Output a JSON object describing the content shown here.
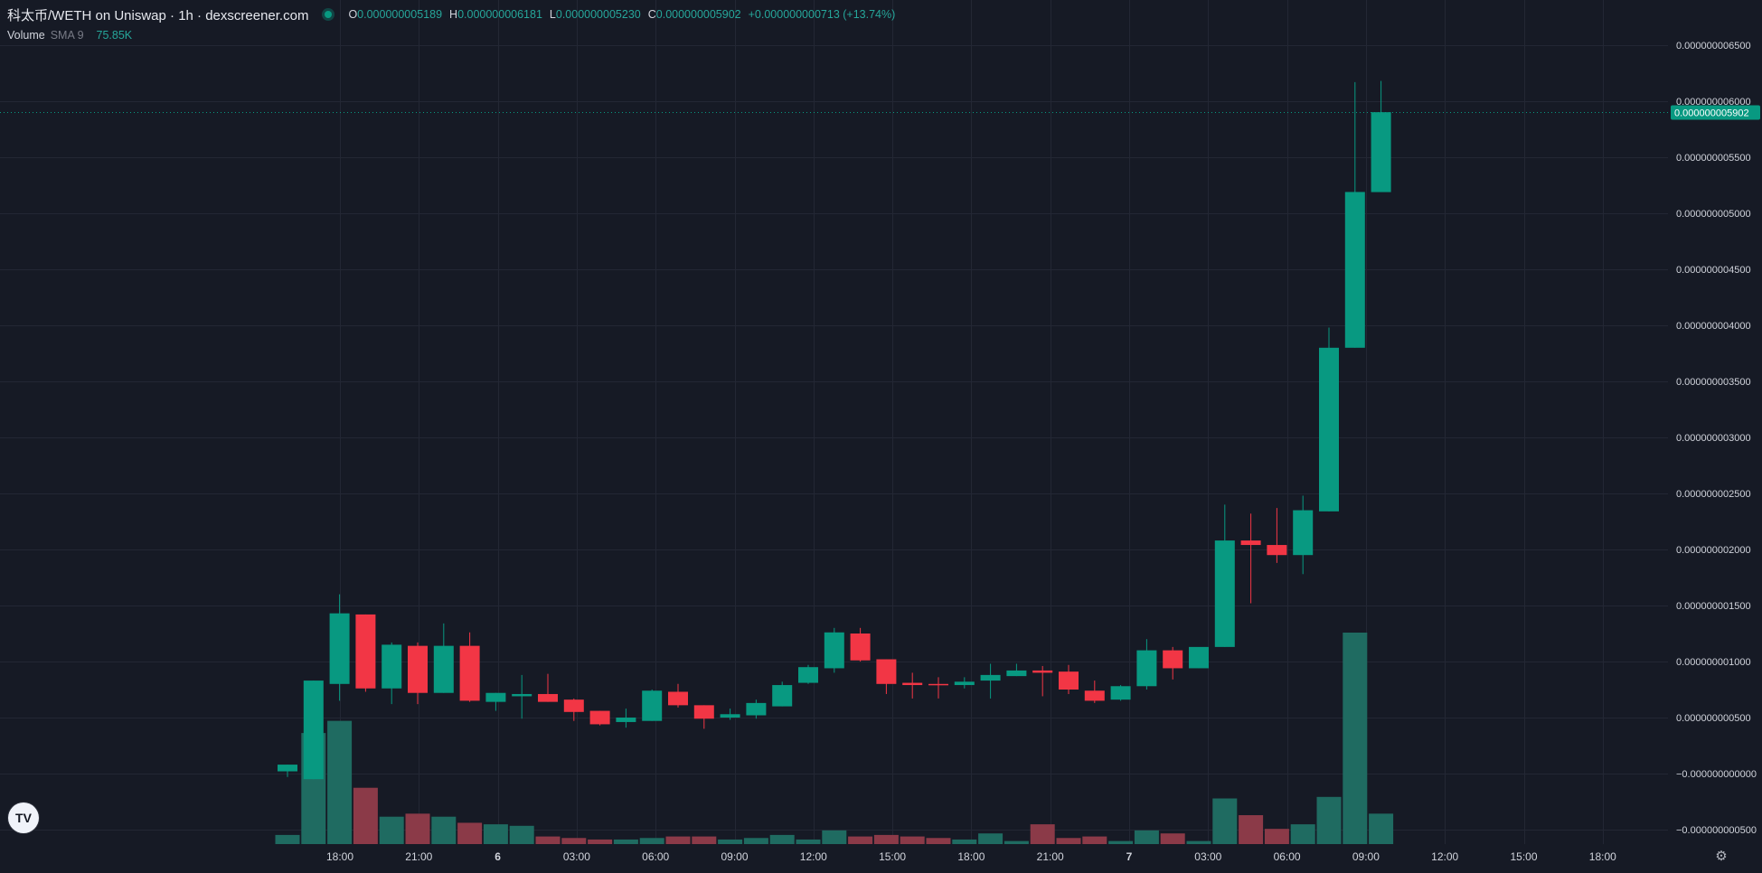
{
  "legend": {
    "pair_title": "科太币/WETH on Uniswap · 1h · dexscreener.com",
    "ohlc": {
      "o_label": "O",
      "o_value": "0.000000005189",
      "h_label": "H",
      "h_value": "0.000000006181",
      "l_label": "L",
      "l_value": "0.000000005230",
      "c_label": "C",
      "c_value": "0.000000005902",
      "change": "+0.000000000713 (+13.74%)"
    }
  },
  "volume_legend": {
    "name": "Volume",
    "sma": "SMA 9",
    "value": "75.85K"
  },
  "logo_text": "TV",
  "settings_icon": "gear-icon",
  "colors": {
    "background": "#161a25",
    "grid": "#232734",
    "up": "#089981",
    "down": "#f23645",
    "volume_up": "#1f6b61",
    "volume_down": "#8b3a48",
    "axis_text": "#d1d4dc",
    "price_tag_bg": "#089981"
  },
  "chart_data": {
    "type": "candlestick",
    "interval": "1h",
    "price_axis_labels": [
      "0.000000006500",
      "0.000000006000",
      "0.000000005500",
      "0.000000005000",
      "0.000000004500",
      "0.000000004000",
      "0.000000003500",
      "0.000000003000",
      "0.000000002500",
      "0.000000002000",
      "0.000000001500",
      "0.000000001000",
      "0.000000000500",
      "0.000000000000",
      "-0.000000000500"
    ],
    "price_axis_values": [
      6.5,
      6.0,
      5.5,
      5.0,
      4.5,
      4.0,
      3.5,
      3.0,
      2.5,
      2.0,
      1.5,
      1.0,
      0.5,
      0.0,
      -0.5
    ],
    "price_axis_unit_exponent": -9,
    "price_axis_first_label": "0.000000006500",
    "price_axis_zero_label": "−0.000000000000",
    "price_axis_last_label": "−0.000000000500",
    "ylim": [
      -0.55,
      6.95
    ],
    "time_axis_labels": [
      "18:00",
      "21:00",
      "6",
      "03:00",
      "06:00",
      "09:00",
      "12:00",
      "15:00",
      "18:00",
      "21:00",
      "7",
      "03:00",
      "06:00",
      "09:00",
      "12:00",
      "15:00",
      "18:00"
    ],
    "time_axis_positions": [
      3,
      6,
      9,
      12,
      15,
      18,
      21,
      24,
      27,
      30,
      33,
      36,
      39,
      42,
      45,
      48,
      51
    ],
    "last_price": {
      "value": 5.902,
      "label": "0.000000005902"
    },
    "candles": [
      {
        "t": 0,
        "o": 0.02,
        "h": 0.08,
        "l": -0.03,
        "c": 0.08,
        "v": 6
      },
      {
        "t": 1,
        "o": -0.05,
        "h": 0.83,
        "l": -0.05,
        "c": 0.83,
        "v": 73
      },
      {
        "t": 2,
        "o": 0.8,
        "h": 1.6,
        "l": 0.65,
        "c": 1.43,
        "v": 81
      },
      {
        "t": 3,
        "o": 1.42,
        "h": 1.42,
        "l": 0.73,
        "c": 0.76,
        "v": 37
      },
      {
        "t": 4,
        "o": 0.76,
        "h": 1.17,
        "l": 0.62,
        "c": 1.15,
        "v": 18
      },
      {
        "t": 5,
        "o": 1.14,
        "h": 1.17,
        "l": 0.62,
        "c": 0.72,
        "v": 20
      },
      {
        "t": 6,
        "o": 0.72,
        "h": 1.34,
        "l": 0.72,
        "c": 1.14,
        "v": 18
      },
      {
        "t": 7,
        "o": 1.14,
        "h": 1.26,
        "l": 0.64,
        "c": 0.65,
        "v": 14
      },
      {
        "t": 8,
        "o": 0.64,
        "h": 0.72,
        "l": 0.56,
        "c": 0.72,
        "v": 13
      },
      {
        "t": 9,
        "o": 0.69,
        "h": 0.88,
        "l": 0.49,
        "c": 0.71,
        "v": 12
      },
      {
        "t": 10,
        "o": 0.71,
        "h": 0.89,
        "l": 0.64,
        "c": 0.64,
        "v": 5
      },
      {
        "t": 11,
        "o": 0.66,
        "h": 0.67,
        "l": 0.47,
        "c": 0.55,
        "v": 4
      },
      {
        "t": 12,
        "o": 0.56,
        "h": 0.56,
        "l": 0.43,
        "c": 0.44,
        "v": 3
      },
      {
        "t": 13,
        "o": 0.46,
        "h": 0.58,
        "l": 0.41,
        "c": 0.5,
        "v": 3
      },
      {
        "t": 14,
        "o": 0.47,
        "h": 0.75,
        "l": 0.47,
        "c": 0.74,
        "v": 4
      },
      {
        "t": 15,
        "o": 0.73,
        "h": 0.8,
        "l": 0.59,
        "c": 0.61,
        "v": 5
      },
      {
        "t": 16,
        "o": 0.61,
        "h": 0.61,
        "l": 0.4,
        "c": 0.49,
        "v": 5
      },
      {
        "t": 17,
        "o": 0.5,
        "h": 0.58,
        "l": 0.48,
        "c": 0.53,
        "v": 3
      },
      {
        "t": 18,
        "o": 0.52,
        "h": 0.66,
        "l": 0.49,
        "c": 0.63,
        "v": 4
      },
      {
        "t": 19,
        "o": 0.6,
        "h": 0.82,
        "l": 0.6,
        "c": 0.79,
        "v": 6
      },
      {
        "t": 20,
        "o": 0.81,
        "h": 0.97,
        "l": 0.8,
        "c": 0.95,
        "v": 3
      },
      {
        "t": 21,
        "o": 0.94,
        "h": 1.3,
        "l": 0.9,
        "c": 1.26,
        "v": 9
      },
      {
        "t": 22,
        "o": 1.25,
        "h": 1.3,
        "l": 1.0,
        "c": 1.01,
        "v": 5
      },
      {
        "t": 23,
        "o": 1.02,
        "h": 1.02,
        "l": 0.71,
        "c": 0.8,
        "v": 6
      },
      {
        "t": 24,
        "o": 0.81,
        "h": 0.9,
        "l": 0.67,
        "c": 0.79,
        "v": 5
      },
      {
        "t": 25,
        "o": 0.8,
        "h": 0.86,
        "l": 0.67,
        "c": 0.79,
        "v": 4
      },
      {
        "t": 26,
        "o": 0.79,
        "h": 0.86,
        "l": 0.76,
        "c": 0.82,
        "v": 3
      },
      {
        "t": 27,
        "o": 0.83,
        "h": 0.98,
        "l": 0.67,
        "c": 0.88,
        "v": 7
      },
      {
        "t": 28,
        "o": 0.87,
        "h": 0.98,
        "l": 0.87,
        "c": 0.92,
        "v": 2
      },
      {
        "t": 29,
        "o": 0.92,
        "h": 0.96,
        "l": 0.69,
        "c": 0.9,
        "v": 13
      },
      {
        "t": 30,
        "o": 0.91,
        "h": 0.97,
        "l": 0.71,
        "c": 0.75,
        "v": 4
      },
      {
        "t": 31,
        "o": 0.74,
        "h": 0.83,
        "l": 0.63,
        "c": 0.65,
        "v": 5
      },
      {
        "t": 32,
        "o": 0.66,
        "h": 0.79,
        "l": 0.65,
        "c": 0.78,
        "v": 2
      },
      {
        "t": 33,
        "o": 0.78,
        "h": 1.2,
        "l": 0.75,
        "c": 1.1,
        "v": 9
      },
      {
        "t": 34,
        "o": 1.1,
        "h": 1.13,
        "l": 0.84,
        "c": 0.94,
        "v": 7
      },
      {
        "t": 35,
        "o": 0.94,
        "h": 1.12,
        "l": 0.94,
        "c": 1.13,
        "v": 2
      },
      {
        "t": 36,
        "o": 1.13,
        "h": 2.4,
        "l": 1.13,
        "c": 2.08,
        "v": 30
      },
      {
        "t": 37,
        "o": 2.08,
        "h": 2.32,
        "l": 1.52,
        "c": 2.04,
        "v": 19
      },
      {
        "t": 38,
        "o": 2.04,
        "h": 2.37,
        "l": 1.88,
        "c": 1.95,
        "v": 10
      },
      {
        "t": 39,
        "o": 1.95,
        "h": 2.48,
        "l": 1.78,
        "c": 2.35,
        "v": 13
      },
      {
        "t": 40,
        "o": 2.34,
        "h": 3.98,
        "l": 2.34,
        "c": 3.8,
        "v": 31
      },
      {
        "t": 41,
        "o": 3.8,
        "h": 6.17,
        "l": 3.8,
        "c": 5.19,
        "v": 139
      },
      {
        "t": 42,
        "o": 5.189,
        "h": 6.181,
        "l": 5.23,
        "c": 5.902,
        "v": 20
      }
    ],
    "volume_ylim": [
      0,
      139
    ]
  }
}
